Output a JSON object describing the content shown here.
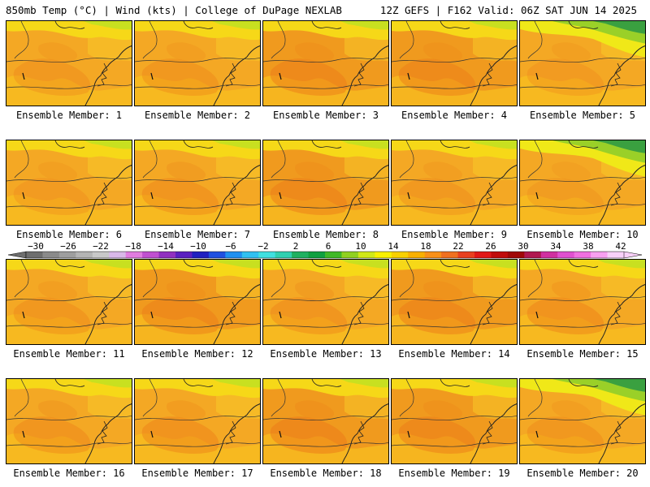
{
  "header": {
    "left": "850mb Temp (°C) | Wind (kts) | College of DuPage NEXLAB",
    "right": "12Z GEFS | F162 Valid: 06Z SAT JUN 14 2025"
  },
  "panels": [
    {
      "label": "Ensemble Member: 1",
      "warmth": 0.45,
      "north": "yellow"
    },
    {
      "label": "Ensemble Member: 2",
      "warmth": 0.5,
      "north": "yellow"
    },
    {
      "label": "Ensemble Member: 3",
      "warmth": 0.7,
      "north": "yellow"
    },
    {
      "label": "Ensemble Member: 4",
      "warmth": 0.65,
      "north": "yellow"
    },
    {
      "label": "Ensemble Member: 5",
      "warmth": 0.4,
      "north": "green"
    },
    {
      "label": "Ensemble Member: 6",
      "warmth": 0.4,
      "north": "yellow"
    },
    {
      "label": "Ensemble Member: 7",
      "warmth": 0.55,
      "north": "yellow"
    },
    {
      "label": "Ensemble Member: 8",
      "warmth": 0.7,
      "north": "yellow"
    },
    {
      "label": "Ensemble Member: 9",
      "warmth": 0.45,
      "north": "yellow"
    },
    {
      "label": "Ensemble Member: 10",
      "warmth": 0.35,
      "north": "green"
    },
    {
      "label": "Ensemble Member: 11",
      "warmth": 0.5,
      "north": "yellow"
    },
    {
      "label": "Ensemble Member: 12",
      "warmth": 0.65,
      "north": "yellow"
    },
    {
      "label": "Ensemble Member: 13",
      "warmth": 0.55,
      "north": "yellow"
    },
    {
      "label": "Ensemble Member: 14",
      "warmth": 0.7,
      "north": "yellow"
    },
    {
      "label": "Ensemble Member: 15",
      "warmth": 0.6,
      "north": "yellow"
    },
    {
      "label": "Ensemble Member: 16",
      "warmth": 0.55,
      "north": "yellow"
    },
    {
      "label": "Ensemble Member: 17",
      "warmth": 0.6,
      "north": "yellow"
    },
    {
      "label": "Ensemble Member: 18",
      "warmth": 0.75,
      "north": "yellow"
    },
    {
      "label": "Ensemble Member: 19",
      "warmth": 0.7,
      "north": "yellow"
    },
    {
      "label": "Ensemble Member: 20",
      "warmth": 0.5,
      "north": "green"
    }
  ],
  "colorbar": {
    "labels": [
      "−30",
      "−26",
      "−22",
      "−18",
      "−14",
      "−10",
      "−6",
      "−2",
      "2",
      "6",
      "10",
      "14",
      "18",
      "22",
      "26",
      "30",
      "34",
      "38",
      "42"
    ],
    "colors": [
      "#6e6e6e",
      "#8a8a8a",
      "#9e9e9e",
      "#b4b4b4",
      "#c8c8c8",
      "#d8b8e8",
      "#e07ce0",
      "#c050d0",
      "#9030c0",
      "#5a20c0",
      "#2020c0",
      "#2050e0",
      "#2090f0",
      "#30c0f0",
      "#40e0e0",
      "#30d0b0",
      "#20b060",
      "#10a040",
      "#40b828",
      "#90d020",
      "#d0e818",
      "#f8f000",
      "#f8d000",
      "#f8b000",
      "#f89018",
      "#f07020",
      "#e84020",
      "#e01818",
      "#c00c0c",
      "#a00808",
      "#b01850",
      "#d030a0",
      "#e050d0",
      "#f070e0",
      "#f8a0f0",
      "#f8d0f8"
    ]
  }
}
